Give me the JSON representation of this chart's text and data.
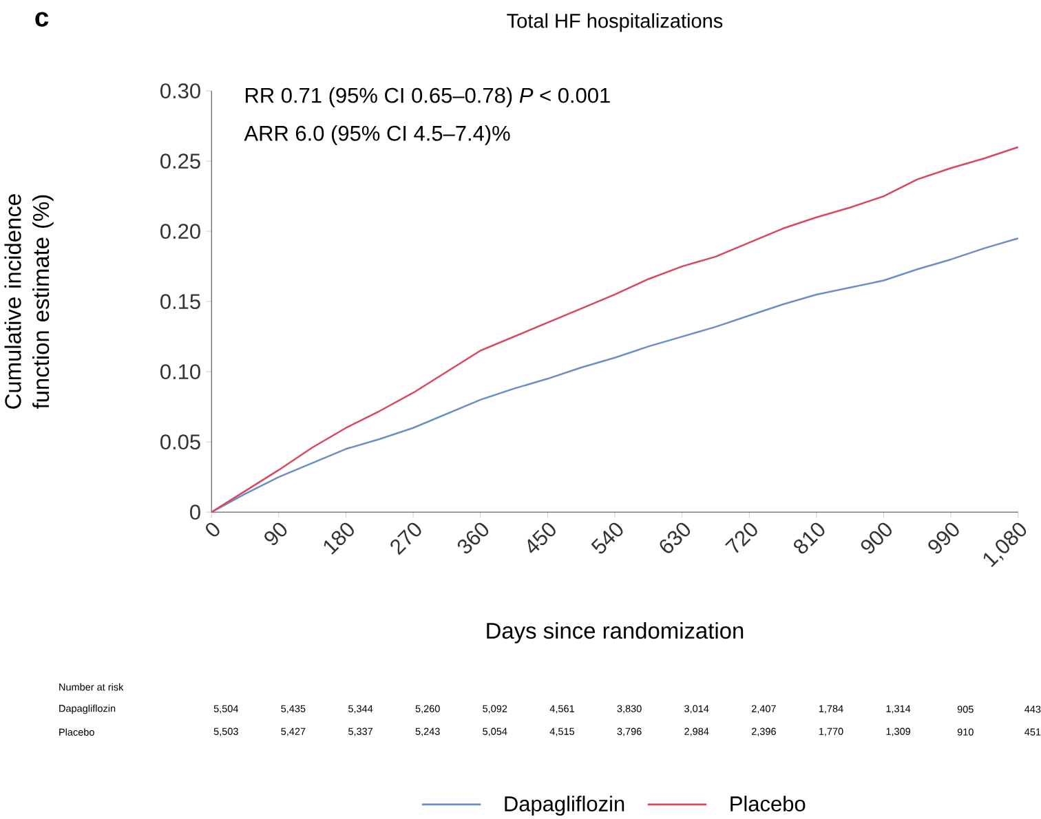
{
  "chart_data": {
    "type": "line",
    "title": "Total HF hospitalizations",
    "xlabel": "Days since randomization",
    "ylabel": "Cumulative incidence function estimate (%)",
    "x": [
      0,
      45,
      90,
      135,
      180,
      225,
      270,
      315,
      360,
      405,
      450,
      495,
      540,
      585,
      630,
      675,
      720,
      765,
      810,
      855,
      900,
      945,
      990,
      1035,
      1080
    ],
    "series": [
      {
        "name": "Dapagliflozin",
        "color": "#6a8fc4",
        "values": [
          0,
          0.013,
          0.025,
          0.035,
          0.045,
          0.052,
          0.06,
          0.07,
          0.08,
          0.088,
          0.095,
          0.103,
          0.11,
          0.118,
          0.125,
          0.132,
          0.14,
          0.148,
          0.155,
          0.16,
          0.165,
          0.173,
          0.18,
          0.188,
          0.195
        ]
      },
      {
        "name": "Placebo",
        "color": "#d9485f",
        "values": [
          0,
          0.015,
          0.03,
          0.046,
          0.06,
          0.072,
          0.085,
          0.1,
          0.115,
          0.125,
          0.135,
          0.145,
          0.155,
          0.166,
          0.175,
          0.182,
          0.192,
          0.202,
          0.21,
          0.217,
          0.225,
          0.237,
          0.245,
          0.252,
          0.26
        ]
      }
    ],
    "xlim": [
      0,
      1080
    ],
    "ylim": [
      0,
      0.3
    ],
    "xticks": [
      0,
      90,
      180,
      270,
      360,
      450,
      540,
      630,
      720,
      810,
      900,
      990,
      {
        "value": 1080,
        "label": "1,080"
      }
    ],
    "yticks": [
      {
        "value": 0,
        "label": "0"
      },
      0.05,
      {
        "value": 0.1,
        "label": "0.10"
      },
      0.15,
      {
        "value": 0.2,
        "label": "0.20"
      },
      0.25,
      {
        "value": 0.3,
        "label": "0.30"
      }
    ],
    "grid": false,
    "legend": "bottom",
    "marker": "none",
    "line_style": "solid",
    "annotations": [
      "c",
      "RR 0.71 (95% CI 0.65–0.78) *P* < 0.001",
      "ARR 6.0 (95% CI 4.5–7.4)%",
      "Number at risk",
      "Dapagliflozin",
      "5,504",
      "5,435",
      "5,344",
      "5,260",
      "5,092",
      "4,561",
      "3,830",
      "3,014",
      "2,407",
      "1,784",
      "1,314",
      "905",
      "443",
      "Placebo",
      "5,503",
      "5,427",
      "5,337",
      "5,243",
      "5,054",
      "4,515",
      "3,796",
      "2,984",
      "2,396",
      "1,770",
      "1,309",
      "910",
      "451"
    ]
  }
}
